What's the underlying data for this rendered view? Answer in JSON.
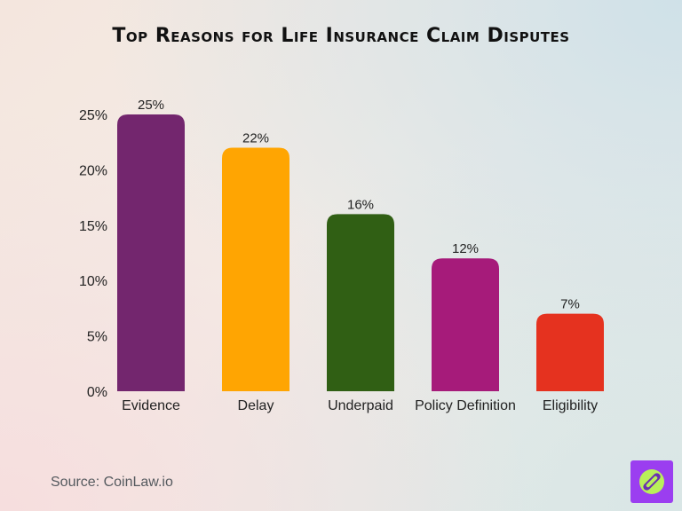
{
  "chart_data": {
    "type": "bar",
    "title": "Top Reasons for Life Insurance Claim Disputes",
    "categories": [
      "Evidence",
      "Delay",
      "Underpaid",
      "Policy Definition",
      "Eligibility"
    ],
    "values": [
      25,
      22,
      16,
      12,
      7
    ],
    "value_labels": [
      "25%",
      "22%",
      "16%",
      "12%",
      "7%"
    ],
    "bar_colors": [
      "#73266e",
      "#ffa502",
      "#305f14",
      "#a61b7a",
      "#e5321f"
    ],
    "y_ticks": [
      0,
      5,
      10,
      15,
      20,
      25
    ],
    "y_tick_labels": [
      "0%",
      "5%",
      "10%",
      "15%",
      "20%",
      "25%"
    ],
    "ylim": [
      0,
      25
    ],
    "xlabel": "",
    "ylabel": "",
    "grid": false,
    "legend": false
  },
  "source": "Source: CoinLaw.io",
  "logo": {
    "icon": "compass-icon",
    "bg_color": "#9b3ef0",
    "fg_color": "#b9f05a"
  }
}
